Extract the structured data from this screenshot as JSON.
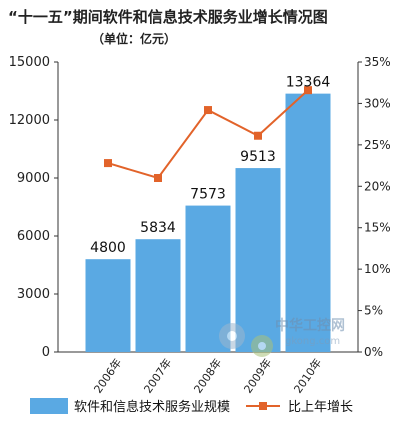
{
  "chart_data": {
    "type": "bar",
    "title": "“十一五”期间软件和信息技术服务业增长情况图",
    "subtitle": "（单位：亿元）",
    "categories": [
      "2006年",
      "2007年",
      "2008年",
      "2009年",
      "2010年"
    ],
    "series": [
      {
        "name": "软件和信息技术服务业规模",
        "type": "bar",
        "axis": "left",
        "color": "#5aa9e3",
        "values": [
          4800,
          5834,
          7573,
          9513,
          13364
        ]
      },
      {
        "name": "比上年增长",
        "type": "line",
        "axis": "right",
        "color": "#e2632a",
        "values": [
          22.8,
          21.0,
          29.2,
          26.1,
          31.6
        ]
      }
    ],
    "data_labels": [
      "4800",
      "5834",
      "7573",
      "9513",
      "13364"
    ],
    "y_left": {
      "min": 0,
      "max": 15000,
      "ticks": [
        "0",
        "3000",
        "6000",
        "9000",
        "12000",
        "15000"
      ]
    },
    "y_right": {
      "min": 0,
      "max": 35,
      "ticks": [
        "0%",
        "5%",
        "10%",
        "15%",
        "20%",
        "25%",
        "30%",
        "35%"
      ]
    },
    "grid": false,
    "legend_position": "bottom",
    "watermark": "中华工控网 gkong.com"
  }
}
